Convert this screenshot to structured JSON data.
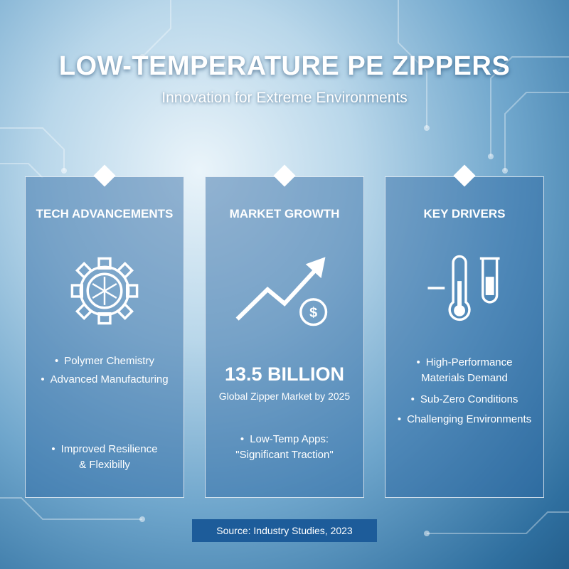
{
  "header": {
    "title": "LOW-TEMPERATURE PE ZIPPERS",
    "subtitle": "Innovation for Extreme Environments"
  },
  "panels": [
    {
      "title": "TECH ADVANCEMENTS",
      "bullets": [
        "Polymer Chemistry",
        "Advanced Manufacturing",
        "Improved Resilience & Flexibilly"
      ]
    },
    {
      "title": "MARKET GROWTH",
      "stat": "13.5 BILLION",
      "stat_caption": "Global Zipper Market by 2025",
      "bullets": [
        "Low-Temp Apps: \"Significant Traction\""
      ]
    },
    {
      "title": "KEY DRIVERS",
      "bullets": [
        "High-Performance Materials Demand",
        "Sub-Zero Conditions",
        "Challenging Environments"
      ]
    }
  ],
  "source": "Source: Industry Studies, 2023"
}
